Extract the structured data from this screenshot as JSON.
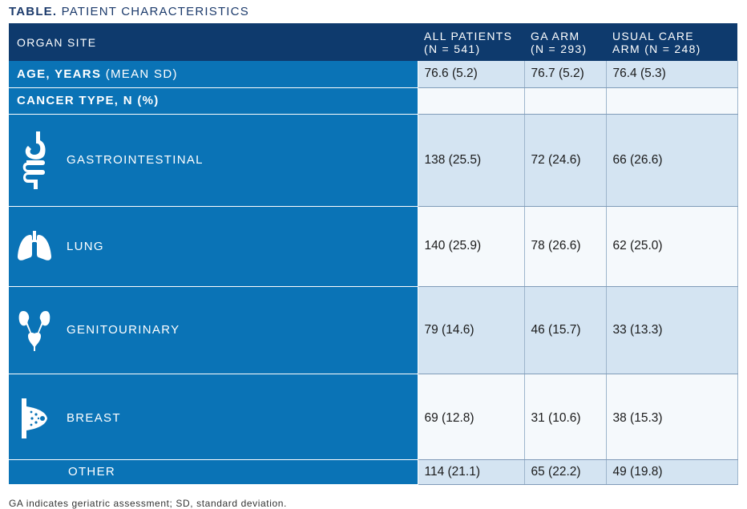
{
  "title": {
    "prefix": "TABLE.",
    "text": "PATIENT CHARACTERISTICS"
  },
  "header": {
    "col0": "ORGAN SITE",
    "col1_line1": "ALL PATIENTS",
    "col1_line2": "(N = 541)",
    "col2_line1": "GA ARM",
    "col2_line2": "(N = 293)",
    "col3_line1": "USUAL CARE",
    "col3_line2": "ARM (N = 248)"
  },
  "age_row": {
    "label_bold": "AGE, YEARS",
    "label_rest": " (MEAN SD)",
    "all": "76.6 (5.2)",
    "ga": "76.7 (5.2)",
    "usual": "76.4 (5.3)"
  },
  "cancer_row": {
    "label": "CANCER TYPE, N (%)"
  },
  "rows": [
    {
      "label": "GASTROINTESTINAL",
      "icon": "stomach-intestine-icon",
      "all": "138 (25.5)",
      "ga": "72 (24.6)",
      "usual": "66 (26.6)"
    },
    {
      "label": "LUNG",
      "icon": "lungs-icon",
      "all": "140 (25.9)",
      "ga": "78 (26.6)",
      "usual": "62 (25.0)"
    },
    {
      "label": "GENITOURINARY",
      "icon": "kidneys-bladder-icon",
      "all": "79 (14.6)",
      "ga": "46 (15.7)",
      "usual": "33 (13.3)"
    },
    {
      "label": "BREAST",
      "icon": "breast-icon",
      "all": "69 (12.8)",
      "ga": "31 (10.6)",
      "usual": "38 (15.3)"
    },
    {
      "label": "OTHER",
      "all": "114 (21.1)",
      "ga": "65 (22.2)",
      "usual": "49 (19.8)"
    }
  ],
  "footnote": "GA indicates geriatric assessment; SD, standard deviation.",
  "colors": {
    "header_bg": "#0e3a6d",
    "label_bg": "#0a73b6",
    "shade": "#d4e4f2"
  }
}
